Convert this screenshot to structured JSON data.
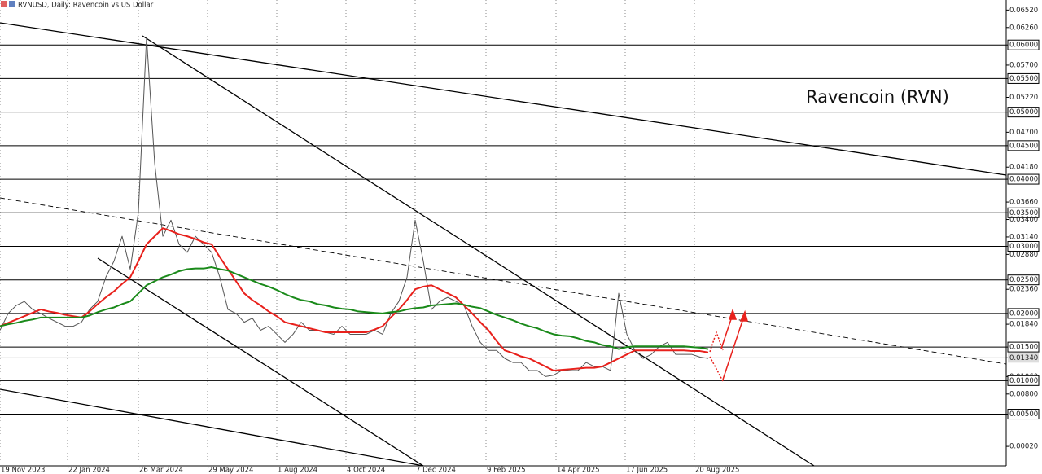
{
  "chart_data": {
    "type": "line",
    "title": "RVNUSD, Daily: Ravencoin vs US Dollar",
    "annotation": "Ravencoin (RVN)",
    "xlim": [
      0,
      123.6
    ],
    "ylim": [
      -0.0027,
      0.0667
    ],
    "xticks": [
      {
        "value": 0,
        "label": "19 Nov 2023"
      },
      {
        "value": 8.3,
        "label": "22 Jan 2024"
      },
      {
        "value": 17,
        "label": "26 Mar 2024"
      },
      {
        "value": 25.5,
        "label": "29 May 2024"
      },
      {
        "value": 34,
        "label": "1 Aug 2024"
      },
      {
        "value": 42.5,
        "label": "4 Oct 2024"
      },
      {
        "value": 51,
        "label": "7 Dec 2024"
      },
      {
        "value": 59.7,
        "label": "9 Feb 2025"
      },
      {
        "value": 68.3,
        "label": "14 Apr 2025"
      },
      {
        "value": 76.8,
        "label": "17 Jun 2025"
      },
      {
        "value": 85.3,
        "label": "20 Aug 2025"
      }
    ],
    "yticks": [
      {
        "value": 0.0652,
        "label": "0.06520"
      },
      {
        "value": 0.0626,
        "label": "0.06260"
      },
      {
        "value": 0.06,
        "label": "0.06000",
        "level": true
      },
      {
        "value": 0.057,
        "label": "0.05700"
      },
      {
        "value": 0.055,
        "label": "0.05500",
        "level": true
      },
      {
        "value": 0.0522,
        "label": "0.05220"
      },
      {
        "value": 0.05,
        "label": "0.05000",
        "level": true
      },
      {
        "value": 0.047,
        "label": "0.04700"
      },
      {
        "value": 0.045,
        "label": "0.04500",
        "level": true
      },
      {
        "value": 0.0418,
        "label": "0.04180"
      },
      {
        "value": 0.04,
        "label": "0.04000",
        "level": true
      },
      {
        "value": 0.0366,
        "label": "0.03660"
      },
      {
        "value": 0.035,
        "label": "0.03500",
        "level": true
      },
      {
        "value": 0.034,
        "label": "0.03400"
      },
      {
        "value": 0.0314,
        "label": "0.03140"
      },
      {
        "value": 0.03,
        "label": "0.03000",
        "level": true
      },
      {
        "value": 0.0288,
        "label": "0.02880"
      },
      {
        "value": 0.025,
        "label": "0.02500",
        "level": true
      },
      {
        "value": 0.0236,
        "label": "0.02360"
      },
      {
        "value": 0.02,
        "label": "0.02000",
        "level": true
      },
      {
        "value": 0.0184,
        "label": "0.01840"
      },
      {
        "value": 0.015,
        "label": "0.01500",
        "level": true
      },
      {
        "value": 0.0134,
        "label": "0.01340",
        "current": true
      },
      {
        "value": 0.0106,
        "label": "0.01060"
      },
      {
        "value": 0.01,
        "label": "0.01000",
        "level": true
      },
      {
        "value": 0.008,
        "label": "0.00800"
      },
      {
        "value": 0.005,
        "label": "0.00500",
        "level": true
      },
      {
        "value": 0.0002,
        "label": "0.00020"
      }
    ],
    "series": [
      {
        "color": "#555555",
        "values": [
          0.0175,
          0.02,
          0.0212,
          0.0218,
          0.0206,
          0.02,
          0.0193,
          0.0187,
          0.0181,
          0.0181,
          0.0187,
          0.0206,
          0.0218,
          0.0254,
          0.0278,
          0.0315,
          0.0266,
          0.0351,
          0.0612,
          0.0424,
          0.0315,
          0.0339,
          0.0303,
          0.0291,
          0.0315,
          0.0303,
          0.0291,
          0.0254,
          0.0206,
          0.02,
          0.0187,
          0.0193,
          0.0175,
          0.0181,
          0.0169,
          0.0157,
          0.0169,
          0.0187,
          0.0175,
          0.0175,
          0.0172,
          0.0169,
          0.0181,
          0.0169,
          0.0169,
          0.0169,
          0.0175,
          0.0169,
          0.02,
          0.0218,
          0.0254,
          0.0339,
          0.0278,
          0.0206,
          0.0218,
          0.0224,
          0.0218,
          0.0212,
          0.0181,
          0.0157,
          0.0145,
          0.0145,
          0.0133,
          0.0127,
          0.0127,
          0.0115,
          0.0115,
          0.0106,
          0.0108,
          0.0115,
          0.0115,
          0.0115,
          0.0127,
          0.0121,
          0.0121,
          0.0115,
          0.023,
          0.0169,
          0.0145,
          0.0133,
          0.0139,
          0.0151,
          0.0157,
          0.0139,
          0.0139,
          0.0139,
          0.0135,
          0.0133
        ]
      },
      {
        "color": "#e8211c",
        "values": [
          0.0181,
          0.0186,
          0.0191,
          0.0196,
          0.0201,
          0.0206,
          0.0203,
          0.0201,
          0.0198,
          0.0196,
          0.0194,
          0.0203,
          0.0214,
          0.0224,
          0.0233,
          0.0244,
          0.0254,
          0.0278,
          0.0303,
          0.0315,
          0.0327,
          0.0323,
          0.0318,
          0.0315,
          0.0311,
          0.0306,
          0.0303,
          0.0284,
          0.0266,
          0.0248,
          0.023,
          0.022,
          0.0212,
          0.0203,
          0.0196,
          0.0187,
          0.0184,
          0.0181,
          0.0178,
          0.0175,
          0.0172,
          0.0172,
          0.0172,
          0.0172,
          0.0172,
          0.0172,
          0.0176,
          0.0181,
          0.0194,
          0.0206,
          0.022,
          0.0236,
          0.024,
          0.0242,
          0.0236,
          0.023,
          0.0224,
          0.0212,
          0.02,
          0.0187,
          0.0175,
          0.0159,
          0.0145,
          0.0141,
          0.0136,
          0.0133,
          0.0127,
          0.0121,
          0.0115,
          0.0116,
          0.0117,
          0.0118,
          0.0119,
          0.0119,
          0.0121,
          0.0127,
          0.0133,
          0.0139,
          0.0145,
          0.0145,
          0.0145,
          0.0145,
          0.0145,
          0.0145,
          0.0145,
          0.0144,
          0.0144,
          0.0142
        ]
      },
      {
        "color": "#1a8a1a",
        "values": [
          0.0181,
          0.0184,
          0.0186,
          0.0189,
          0.0191,
          0.0194,
          0.0194,
          0.0194,
          0.0194,
          0.0194,
          0.0194,
          0.0197,
          0.0202,
          0.0206,
          0.0209,
          0.0214,
          0.0218,
          0.023,
          0.0242,
          0.0248,
          0.0254,
          0.0258,
          0.0263,
          0.0266,
          0.0267,
          0.0267,
          0.0269,
          0.0266,
          0.0264,
          0.0259,
          0.0254,
          0.0249,
          0.0244,
          0.024,
          0.0235,
          0.0229,
          0.0224,
          0.022,
          0.0218,
          0.0214,
          0.0212,
          0.0209,
          0.0207,
          0.0206,
          0.0203,
          0.0202,
          0.0201,
          0.02,
          0.0202,
          0.0203,
          0.0206,
          0.0208,
          0.0209,
          0.0212,
          0.0213,
          0.0214,
          0.0215,
          0.0213,
          0.021,
          0.0208,
          0.0203,
          0.0198,
          0.0194,
          0.019,
          0.0185,
          0.0181,
          0.0178,
          0.0173,
          0.0169,
          0.0167,
          0.0166,
          0.0163,
          0.0159,
          0.0157,
          0.0153,
          0.0151,
          0.0147,
          0.015,
          0.0151,
          0.0151,
          0.0151,
          0.0151,
          0.0151,
          0.0151,
          0.0151,
          0.015,
          0.0149,
          0.0147
        ]
      }
    ]
  }
}
